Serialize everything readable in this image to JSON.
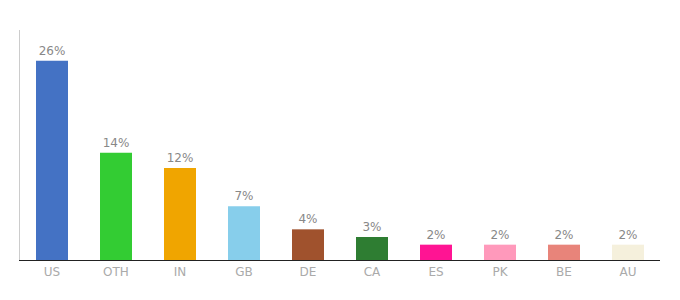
{
  "chart_data": {
    "type": "bar",
    "categories": [
      "US",
      "OTH",
      "IN",
      "GB",
      "DE",
      "CA",
      "ES",
      "PK",
      "BE",
      "AU"
    ],
    "values": [
      26,
      14,
      12,
      7,
      4,
      3,
      2,
      2,
      2,
      2
    ],
    "value_labels": [
      "26%",
      "14%",
      "12%",
      "7%",
      "4%",
      "3%",
      "2%",
      "2%",
      "2%",
      "2%"
    ],
    "colors": [
      "#4472c4",
      "#33cc33",
      "#f0a500",
      "#87ceeb",
      "#a0522d",
      "#2e7d32",
      "#ff1493",
      "#ff99bb",
      "#e8847a",
      "#f5f0dc"
    ],
    "ylim": [
      0,
      30
    ],
    "data_labels": true,
    "tick_labels": "x",
    "grid": false
  }
}
